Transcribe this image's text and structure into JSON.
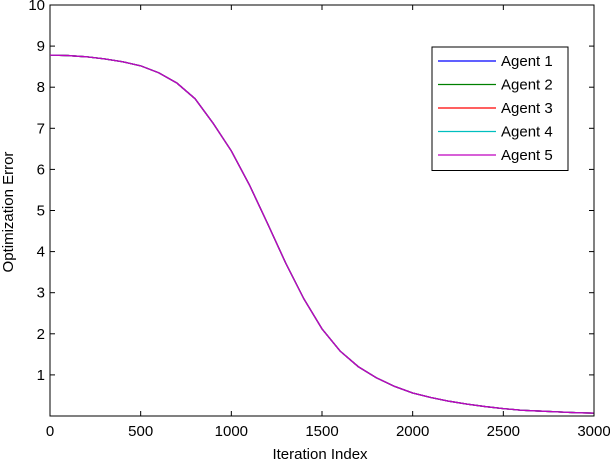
{
  "chart_data": {
    "type": "line",
    "title": "",
    "xlabel": "Iteration Index",
    "ylabel": "Optimization Error",
    "xlim": [
      0,
      3000
    ],
    "ylim": [
      0,
      10
    ],
    "xticks": [
      0,
      500,
      1000,
      1500,
      2000,
      2500,
      3000
    ],
    "yticks": [
      1,
      2,
      3,
      4,
      5,
      6,
      7,
      8,
      9,
      10
    ],
    "grid": false,
    "legend_position": "top-right",
    "x": [
      0,
      100,
      200,
      300,
      400,
      500,
      600,
      700,
      800,
      900,
      1000,
      1100,
      1200,
      1300,
      1400,
      1500,
      1600,
      1700,
      1800,
      1900,
      2000,
      2100,
      2200,
      2300,
      2400,
      2500,
      2600,
      2700,
      2800,
      2900,
      3000
    ],
    "series": [
      {
        "name": "Agent 1",
        "color": "#0000ff",
        "values": [
          8.78,
          8.77,
          8.74,
          8.69,
          8.62,
          8.52,
          8.35,
          8.1,
          7.72,
          7.12,
          6.45,
          5.62,
          4.68,
          3.72,
          2.85,
          2.12,
          1.58,
          1.2,
          0.93,
          0.72,
          0.56,
          0.45,
          0.36,
          0.29,
          0.23,
          0.18,
          0.14,
          0.12,
          0.1,
          0.08,
          0.07
        ]
      },
      {
        "name": "Agent 2",
        "color": "#008000",
        "values": [
          8.78,
          8.77,
          8.74,
          8.69,
          8.62,
          8.52,
          8.35,
          8.1,
          7.72,
          7.12,
          6.45,
          5.62,
          4.68,
          3.72,
          2.85,
          2.12,
          1.58,
          1.2,
          0.93,
          0.72,
          0.56,
          0.45,
          0.36,
          0.29,
          0.23,
          0.18,
          0.14,
          0.12,
          0.1,
          0.08,
          0.07
        ]
      },
      {
        "name": "Agent 3",
        "color": "#ff0000",
        "values": [
          8.78,
          8.77,
          8.74,
          8.69,
          8.62,
          8.52,
          8.35,
          8.1,
          7.72,
          7.12,
          6.45,
          5.62,
          4.68,
          3.72,
          2.85,
          2.12,
          1.58,
          1.2,
          0.93,
          0.72,
          0.56,
          0.45,
          0.36,
          0.29,
          0.23,
          0.18,
          0.14,
          0.12,
          0.1,
          0.08,
          0.07
        ]
      },
      {
        "name": "Agent 4",
        "color": "#00bfbf",
        "values": [
          8.78,
          8.77,
          8.74,
          8.69,
          8.62,
          8.52,
          8.35,
          8.1,
          7.72,
          7.12,
          6.45,
          5.62,
          4.68,
          3.72,
          2.85,
          2.12,
          1.58,
          1.2,
          0.93,
          0.72,
          0.56,
          0.45,
          0.36,
          0.29,
          0.23,
          0.18,
          0.14,
          0.12,
          0.1,
          0.08,
          0.07
        ]
      },
      {
        "name": "Agent 5",
        "color": "#bf00bf",
        "values": [
          8.78,
          8.77,
          8.74,
          8.69,
          8.62,
          8.52,
          8.35,
          8.1,
          7.72,
          7.12,
          6.45,
          5.62,
          4.68,
          3.72,
          2.85,
          2.12,
          1.58,
          1.2,
          0.93,
          0.72,
          0.56,
          0.45,
          0.36,
          0.29,
          0.23,
          0.18,
          0.14,
          0.12,
          0.1,
          0.08,
          0.07
        ]
      }
    ]
  }
}
